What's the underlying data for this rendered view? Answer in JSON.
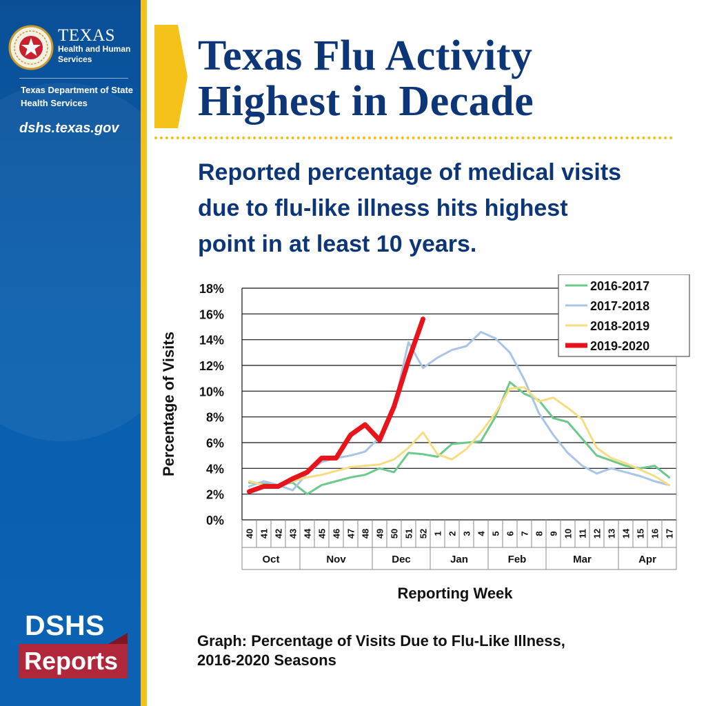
{
  "sidebar": {
    "agency_name_big": "TEXAS",
    "agency_name_line1": "Health and Human",
    "agency_name_line2": "Services",
    "dept_line1": "Texas Department of State",
    "dept_line2": "Health Services",
    "website": "dshs.texas.gov",
    "logo_dshs": "DSHS",
    "logo_reports": "Reports",
    "seal_icon": "texas-star-seal-icon"
  },
  "header": {
    "title_line1": "Texas Flu Activity",
    "title_line2": "Highest in Decade",
    "subtitle_line1": "Reported percentage of medical visits",
    "subtitle_line2": "due to flu-like illness hits highest",
    "subtitle_line3": "point in at least 10 years."
  },
  "caption": {
    "line1": "Graph: Percentage of Visits Due to Flu-Like Illness,",
    "line2": "2016-2020 Seasons"
  },
  "colors": {
    "sidebar_blue": "#0b5aa8",
    "accent_yellow": "#f4c21a",
    "title_navy": "#0c3678",
    "reports_red": "#b0263a"
  },
  "chart_data": {
    "type": "line",
    "xlabel": "Reporting Week",
    "ylabel": "Percentage of Visits",
    "ylim": [
      0,
      18
    ],
    "y_ticks": [
      "0%",
      "2%",
      "4%",
      "6%",
      "8%",
      "10%",
      "12%",
      "14%",
      "16%",
      "18%"
    ],
    "grid": true,
    "legend_position": "top-right",
    "categories": [
      "40",
      "41",
      "42",
      "43",
      "44",
      "45",
      "46",
      "47",
      "48",
      "49",
      "50",
      "51",
      "52",
      "1",
      "2",
      "3",
      "4",
      "5",
      "6",
      "7",
      "8",
      "9",
      "10",
      "11",
      "12",
      "13",
      "14",
      "15",
      "16",
      "17"
    ],
    "months": [
      {
        "label": "Oct",
        "start": 0,
        "end": 3
      },
      {
        "label": "Nov",
        "start": 4,
        "end": 8
      },
      {
        "label": "Dec",
        "start": 9,
        "end": 12
      },
      {
        "label": "Jan",
        "start": 13,
        "end": 16
      },
      {
        "label": "Feb",
        "start": 17,
        "end": 20
      },
      {
        "label": "Mar",
        "start": 21,
        "end": 25
      },
      {
        "label": "Apr",
        "start": 26,
        "end": 29
      }
    ],
    "series": [
      {
        "name": "2016-2017",
        "color": "#6cc98c",
        "width": 3,
        "values": [
          2.9,
          2.8,
          2.7,
          2.9,
          2.0,
          2.7,
          3.0,
          3.3,
          3.5,
          4.0,
          3.7,
          5.2,
          5.1,
          4.9,
          5.9,
          6.0,
          6.1,
          8.0,
          10.7,
          9.8,
          9.3,
          7.9,
          7.6,
          6.3,
          5.0,
          4.6,
          4.2,
          4.0,
          4.2,
          3.3
        ]
      },
      {
        "name": "2017-2018",
        "color": "#a8c4e6",
        "width": 3,
        "values": [
          2.6,
          3.0,
          2.7,
          2.3,
          3.6,
          4.5,
          4.8,
          5.0,
          5.3,
          6.4,
          8.8,
          13.8,
          11.8,
          12.6,
          13.2,
          13.5,
          14.6,
          14.1,
          13.0,
          10.9,
          8.3,
          6.6,
          5.2,
          4.2,
          3.6,
          4.0,
          3.7,
          3.4,
          3.0,
          2.7
        ]
      },
      {
        "name": "2018-2019",
        "color": "#f8dc82",
        "width": 3,
        "values": [
          3.0,
          2.7,
          2.6,
          3.0,
          3.3,
          3.5,
          3.8,
          4.1,
          4.2,
          4.3,
          4.7,
          5.6,
          6.8,
          5.1,
          4.7,
          5.5,
          6.8,
          8.3,
          10.2,
          10.3,
          9.2,
          9.5,
          8.7,
          7.8,
          5.6,
          4.8,
          4.4,
          3.9,
          3.4,
          2.7
        ]
      },
      {
        "name": "2019-2020",
        "color": "#e8141c",
        "width": 7,
        "values": [
          2.2,
          2.6,
          2.6,
          3.2,
          3.7,
          4.8,
          4.8,
          6.6,
          7.4,
          6.2,
          8.8,
          12.4,
          15.6,
          null,
          null,
          null,
          null,
          null,
          null,
          null,
          null,
          null,
          null,
          null,
          null,
          null,
          null,
          null,
          null,
          null
        ]
      }
    ]
  }
}
